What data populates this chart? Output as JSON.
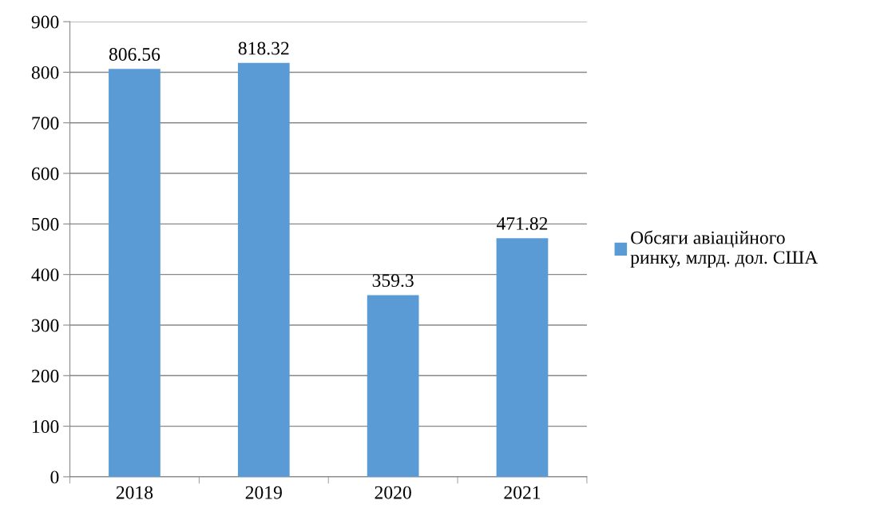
{
  "chart_data": {
    "type": "bar",
    "categories": [
      "2018",
      "2019",
      "2020",
      "2021"
    ],
    "series": [
      {
        "name": "Обсяги авіаційного ринку, млрд. дол. США",
        "color": "#5b9bd5",
        "values": [
          806.56,
          818.32,
          359.3,
          471.82
        ]
      }
    ],
    "ylim": [
      0,
      900
    ],
    "yticks": [
      0,
      100,
      200,
      300,
      400,
      500,
      600,
      700,
      800,
      900
    ],
    "grid": "y",
    "legend": "right",
    "data_labels": true
  }
}
